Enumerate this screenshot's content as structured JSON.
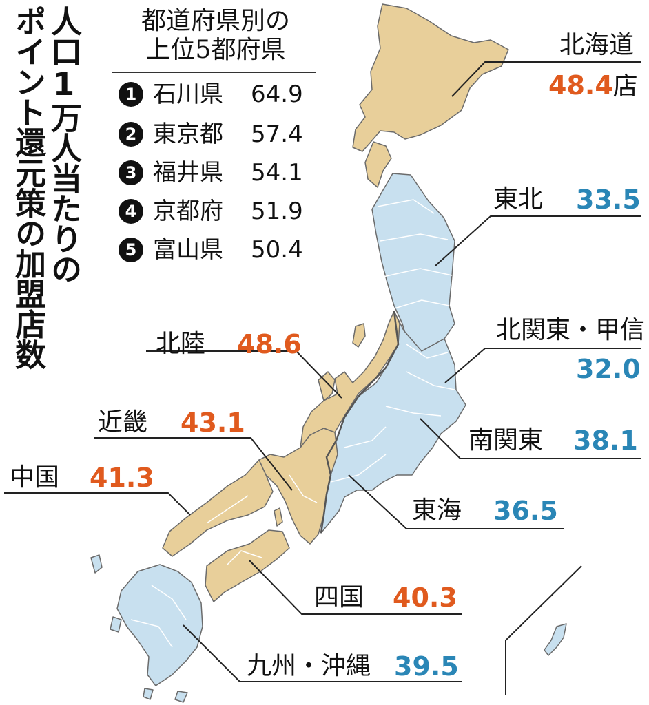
{
  "title": {
    "line1": "人口1万人当たりの",
    "line2": "ポイント還元策の加盟店数"
  },
  "ranking": {
    "heading_line1": "都道府県別の",
    "heading_line2": "上位5都府県",
    "items": [
      {
        "rank": "1",
        "pref": "石川県",
        "value": "64.9"
      },
      {
        "rank": "2",
        "pref": "東京都",
        "value": "57.4"
      },
      {
        "rank": "3",
        "pref": "福井県",
        "value": "54.1"
      },
      {
        "rank": "4",
        "pref": "京都府",
        "value": "51.9"
      },
      {
        "rank": "5",
        "pref": "富山県",
        "value": "50.4"
      }
    ]
  },
  "regions": {
    "hokkaido": {
      "name": "北海道",
      "value": "48.4",
      "unit": "店"
    },
    "tohoku": {
      "name": "東北",
      "value": "33.5"
    },
    "kitakanto_koshin": {
      "name": "北関東・甲信",
      "value": "32.0"
    },
    "minamikanto": {
      "name": "南関東",
      "value": "38.1"
    },
    "tokai": {
      "name": "東海",
      "value": "36.5"
    },
    "hokuriku": {
      "name": "北陸",
      "value": "48.6"
    },
    "kinki": {
      "name": "近畿",
      "value": "43.1"
    },
    "chugoku": {
      "name": "中国",
      "value": "41.3"
    },
    "shikoku": {
      "name": "四国",
      "value": "40.3"
    },
    "kyushu_okinawa": {
      "name": "九州・沖縄",
      "value": "39.5"
    }
  },
  "colors": {
    "above_average_fill": "#e8cf9a",
    "below_average_fill": "#c8e0ef",
    "orange_value": "#e05a1e",
    "blue_value": "#2a86b6"
  }
}
